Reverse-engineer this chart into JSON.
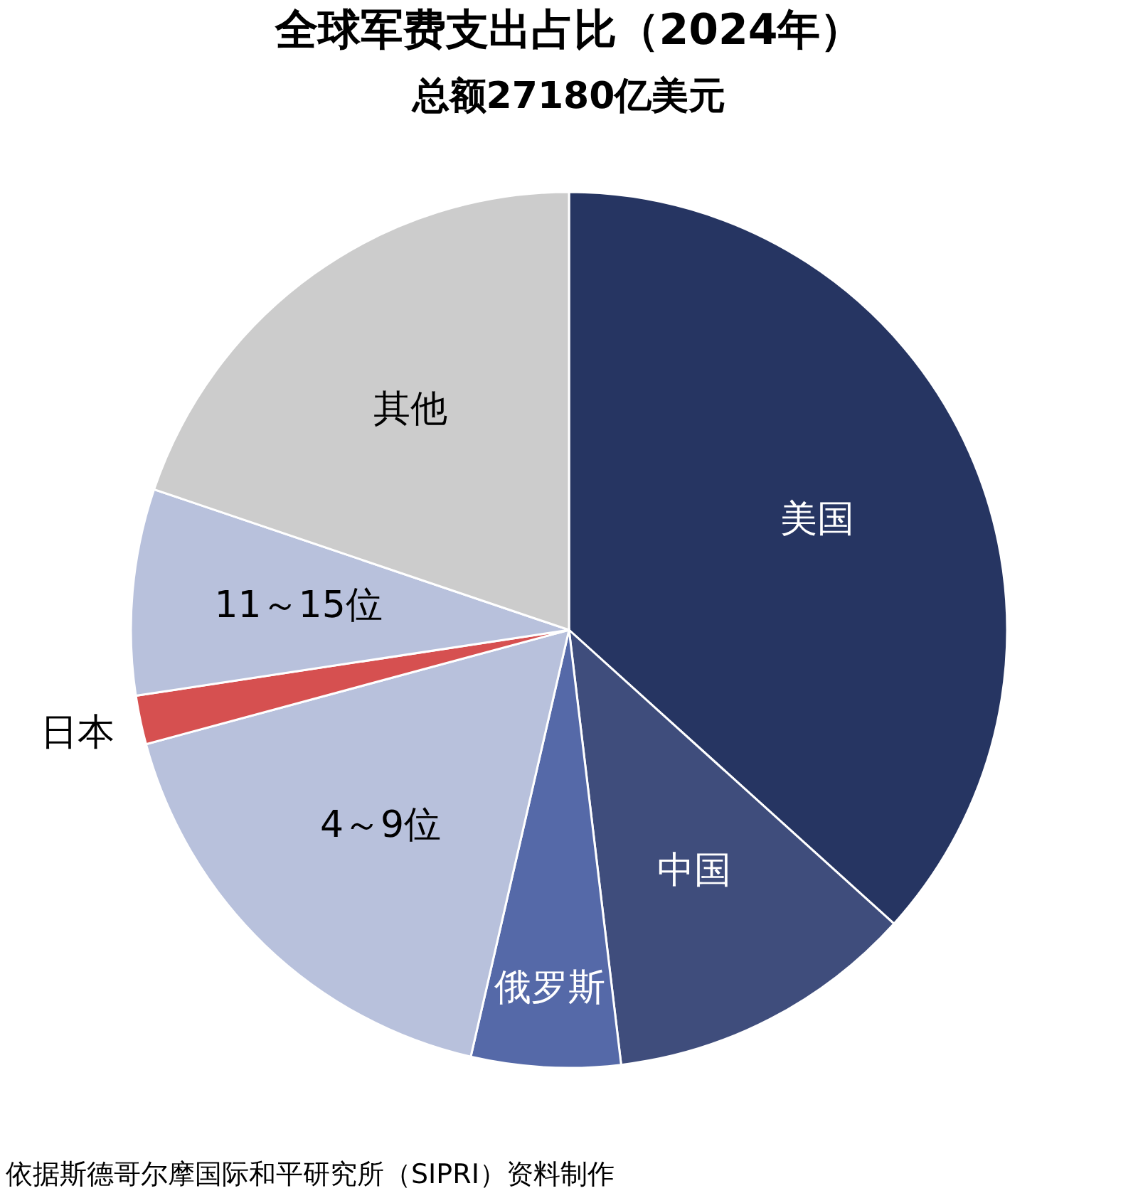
{
  "chart_data": {
    "type": "pie",
    "title": "全球军费支出占比（2024年）",
    "subtitle": "总额27180亿美元",
    "categories": [
      "美国",
      "中国",
      "俄罗斯",
      "4～9位",
      "日本",
      "11～15位",
      "其他"
    ],
    "values": [
      36.7,
      11.4,
      5.5,
      17.2,
      1.8,
      7.6,
      19.8
    ],
    "colors": [
      "#263562",
      "#3f4d7c",
      "#5569a8",
      "#b8c1dc",
      "#d65050",
      "#b8c1dc",
      "#cccccc"
    ],
    "annotations": [
      "依据斯德哥尔摩国际和平研究所（SIPRI）资料制作"
    ]
  }
}
